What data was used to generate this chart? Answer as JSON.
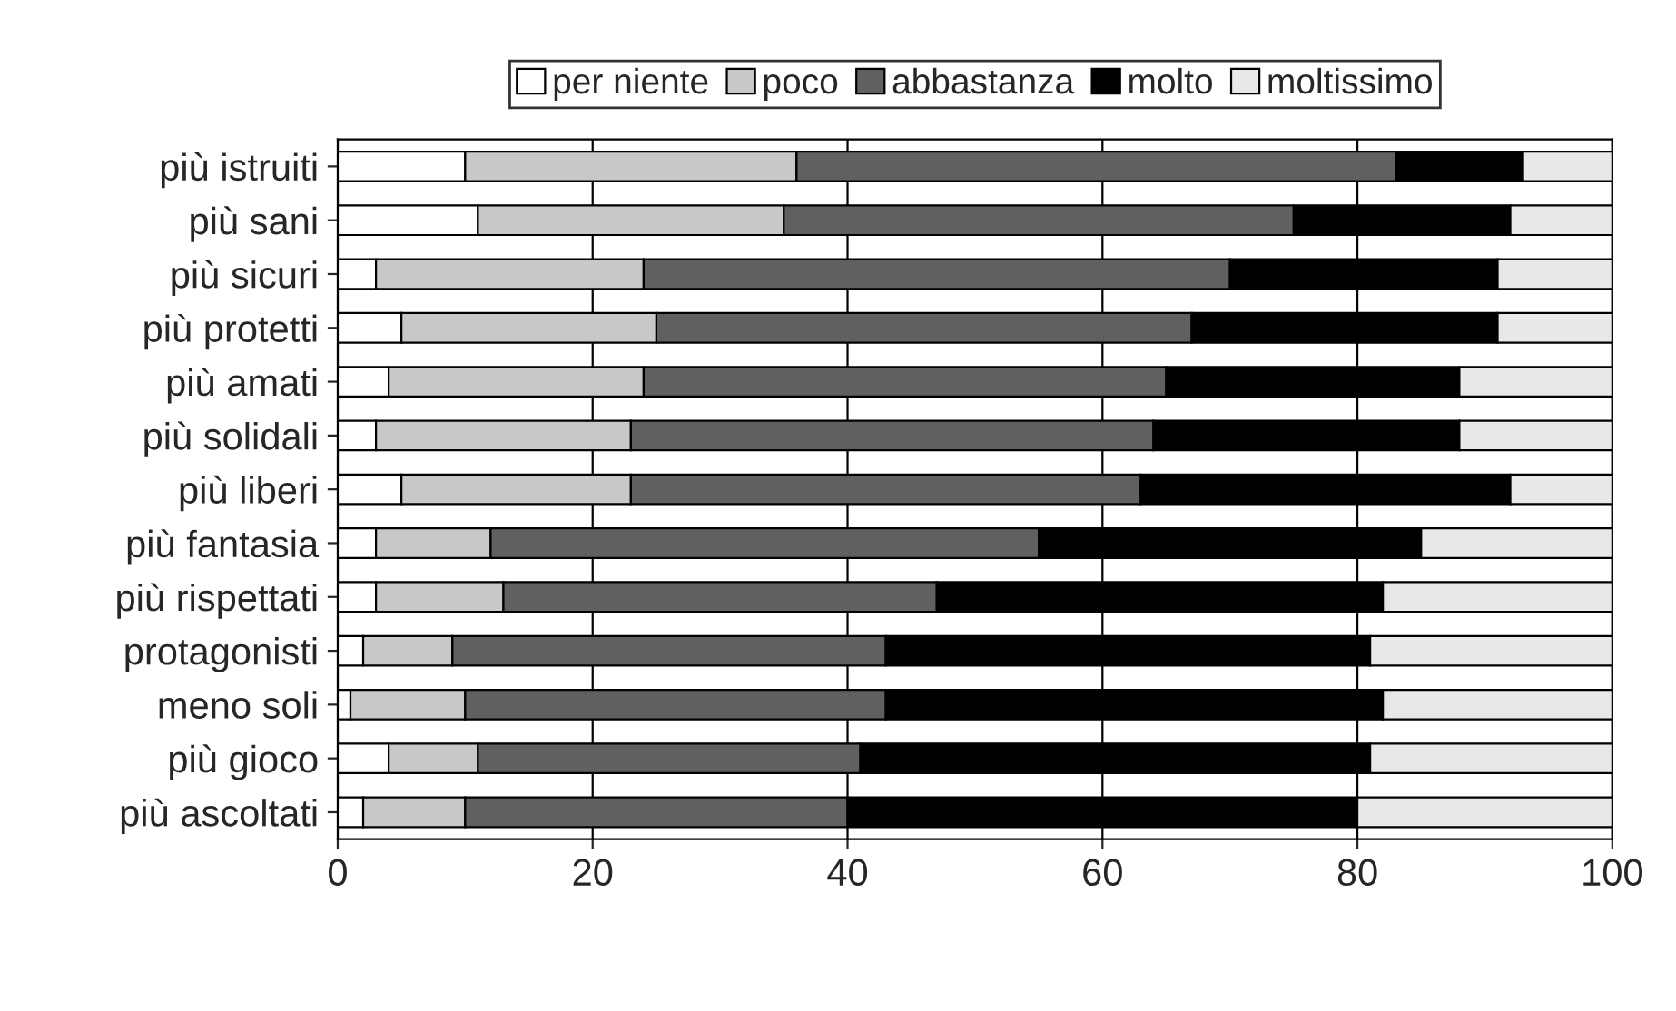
{
  "chart_data": {
    "type": "bar",
    "orientation": "horizontal",
    "stacked": true,
    "categories": [
      "più istruiti",
      "più sani",
      "più sicuri",
      "più protetti",
      "più amati",
      "più solidali",
      "più liberi",
      "più fantasia",
      "più rispettati",
      "protagonisti",
      "meno soli",
      "più gioco",
      "più ascoltati"
    ],
    "series": [
      {
        "name": "per niente",
        "color": "#ffffff",
        "values": [
          10,
          11,
          3,
          5,
          4,
          3,
          5,
          3,
          3,
          2,
          1,
          4,
          2
        ]
      },
      {
        "name": "poco",
        "color": "#c8c8c8",
        "values": [
          26,
          24,
          21,
          20,
          20,
          20,
          18,
          9,
          10,
          7,
          9,
          7,
          8
        ]
      },
      {
        "name": "abbastanza",
        "color": "#606060",
        "values": [
          47,
          40,
          46,
          42,
          41,
          41,
          40,
          43,
          34,
          34,
          33,
          30,
          30
        ]
      },
      {
        "name": "molto",
        "color": "#000000",
        "values": [
          10,
          17,
          21,
          24,
          23,
          24,
          29,
          30,
          35,
          38,
          39,
          40,
          40
        ]
      },
      {
        "name": "moltissimo",
        "color": "#e8e8e8",
        "values": [
          7,
          8,
          9,
          9,
          12,
          12,
          8,
          15,
          18,
          19,
          18,
          19,
          20
        ]
      }
    ],
    "xlim": [
      0,
      100
    ],
    "xticks": [
      0,
      20,
      40,
      60,
      80,
      100
    ],
    "grid": "x",
    "legend": "top"
  }
}
